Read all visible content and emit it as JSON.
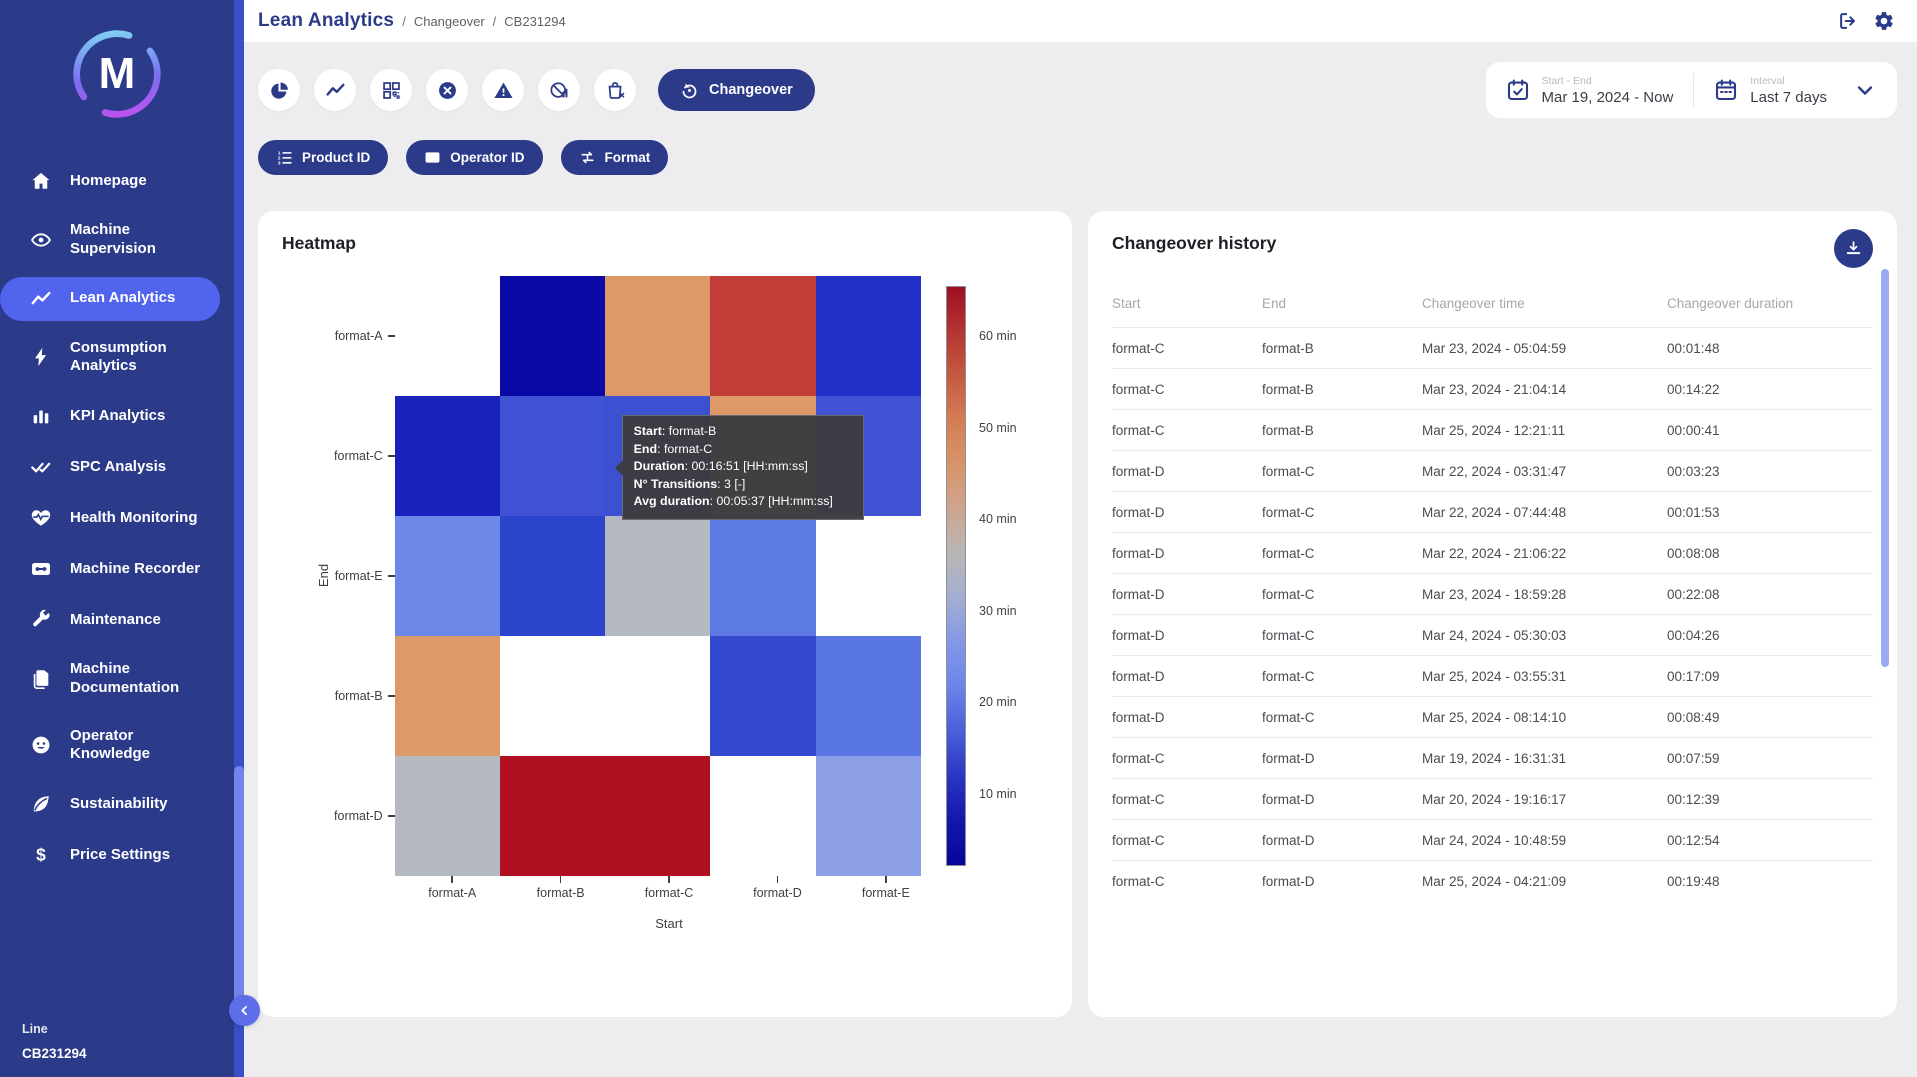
{
  "header": {
    "breadcrumb": {
      "title": "Lean Analytics",
      "separator": "/",
      "items": [
        "Changeover",
        "CB231294"
      ]
    },
    "actions": [
      {
        "icon": "logout-icon"
      },
      {
        "icon": "gear-icon"
      }
    ]
  },
  "sidebar": {
    "logo_letter": "M",
    "items": [
      {
        "label": "Homepage",
        "icon": "home-icon",
        "active": false
      },
      {
        "label": "Machine Supervision",
        "icon": "eye-icon",
        "active": false
      },
      {
        "label": "Lean Analytics",
        "icon": "trend-icon",
        "active": true
      },
      {
        "label": "Consumption Analytics",
        "icon": "bolt-icon",
        "active": false
      },
      {
        "label": "KPI Analytics",
        "icon": "bar-chart-icon",
        "active": false
      },
      {
        "label": "SPC Analysis",
        "icon": "double-check-icon",
        "active": false
      },
      {
        "label": "Health Monitoring",
        "icon": "heart-pulse-icon",
        "active": false
      },
      {
        "label": "Machine Recorder",
        "icon": "cassette-icon",
        "active": false
      },
      {
        "label": "Maintenance",
        "icon": "wrench-icon",
        "active": false
      },
      {
        "label": "Machine Documentation",
        "icon": "documents-icon",
        "active": false
      },
      {
        "label": "Operator Knowledge",
        "icon": "face-icon",
        "active": false
      },
      {
        "label": "Sustainability",
        "icon": "leaf-icon",
        "active": false
      },
      {
        "label": "Price Settings",
        "icon": "dollar-icon",
        "active": false
      }
    ],
    "footer": {
      "label": "Line",
      "value": "CB231294"
    }
  },
  "toolbar": {
    "view_buttons": [
      {
        "icon": "pie-chart-icon"
      },
      {
        "icon": "trend-icon"
      },
      {
        "icon": "qr-grid-icon"
      },
      {
        "icon": "cross-circle-icon"
      },
      {
        "icon": "warning-icon"
      },
      {
        "icon": "stats-disabled-icon"
      },
      {
        "icon": "bag-x-icon"
      }
    ],
    "active_view": {
      "label": "Changeover",
      "icon": "history-icon"
    },
    "date_range": {
      "label": "Start - End",
      "value": "Mar 19, 2024 - Now",
      "icon": "calendar-check-icon"
    },
    "interval": {
      "label": "Interval",
      "value": "Last 7 days",
      "icon": "calendar-icon"
    },
    "filters": [
      {
        "label": "Product ID",
        "icon": "numbered-list-icon"
      },
      {
        "label": "Operator ID",
        "icon": "id-card-icon"
      },
      {
        "label": "Format",
        "icon": "swap-icon"
      }
    ]
  },
  "heatmap": {
    "title": "Heatmap"
  },
  "chart_data": {
    "type": "heatmap",
    "title": "Heatmap",
    "xlabel": "Start",
    "ylabel": "End",
    "x_categories": [
      "format-A",
      "format-B",
      "format-C",
      "format-D",
      "format-E"
    ],
    "y_categories": [
      "format-A",
      "format-C",
      "format-E",
      "format-B",
      "format-D"
    ],
    "values_min": [
      [
        null,
        7,
        47,
        57,
        14
      ],
      [
        10,
        17,
        16,
        47,
        16
      ],
      [
        26,
        13,
        35,
        23,
        null
      ],
      [
        47,
        null,
        null,
        14,
        24
      ],
      [
        35,
        64,
        64,
        null,
        29
      ]
    ],
    "cell_colors": [
      [
        null,
        "#0a09a8",
        "#dd9a68",
        "#c23d38",
        "#2130c6"
      ],
      [
        "#1a22bc",
        "#4053d4",
        "#3c50d2",
        "#dd9a68",
        "#4053d4"
      ],
      [
        "#6c88e8",
        "#2c43cb",
        "#b5b9c1",
        "#5d79e4",
        null
      ],
      [
        "#dd9a68",
        null,
        null,
        "#3348cf",
        "#5a76e3"
      ],
      [
        "#b5b9c1",
        "#b01020",
        "#b01020",
        null,
        "#8c9fe6"
      ]
    ],
    "colorbar": {
      "labels": [
        "60 min",
        "50 min",
        "40 min",
        "30 min",
        "20 min",
        "10 min"
      ],
      "gradient": [
        "#9e0e22",
        "#b43531",
        "#c65a40",
        "#d47d55",
        "#d89468",
        "#cda58f",
        "#b9b7b5",
        "#a3aed2",
        "#8598e8",
        "#6a84ea",
        "#4a5fd9",
        "#2b36c4",
        "#1317ae",
        "#06059c"
      ]
    },
    "tooltip": {
      "lines": [
        {
          "label": "Start",
          "value": "format-B",
          "unit": ""
        },
        {
          "label": "End",
          "value": "format-C",
          "unit": ""
        },
        {
          "label": "Duration",
          "value": "00:16:51",
          "unit": "[HH:mm:ss]"
        },
        {
          "label": "N° Transitions",
          "value": "3",
          "unit": "[-]"
        },
        {
          "label": "Avg duration",
          "value": "00:05:37",
          "unit": "[HH:mm:ss]"
        }
      ]
    }
  },
  "history": {
    "title": "Changeover history",
    "columns": [
      "Start",
      "End",
      "Changeover time",
      "Changeover duration"
    ],
    "rows": [
      [
        "format-C",
        "format-B",
        "Mar 23, 2024 - 05:04:59",
        "00:01:48"
      ],
      [
        "format-C",
        "format-B",
        "Mar 23, 2024 - 21:04:14",
        "00:14:22"
      ],
      [
        "format-C",
        "format-B",
        "Mar 25, 2024 - 12:21:11",
        "00:00:41"
      ],
      [
        "format-D",
        "format-C",
        "Mar 22, 2024 - 03:31:47",
        "00:03:23"
      ],
      [
        "format-D",
        "format-C",
        "Mar 22, 2024 - 07:44:48",
        "00:01:53"
      ],
      [
        "format-D",
        "format-C",
        "Mar 22, 2024 - 21:06:22",
        "00:08:08"
      ],
      [
        "format-D",
        "format-C",
        "Mar 23, 2024 - 18:59:28",
        "00:22:08"
      ],
      [
        "format-D",
        "format-C",
        "Mar 24, 2024 - 05:30:03",
        "00:04:26"
      ],
      [
        "format-D",
        "format-C",
        "Mar 25, 2024 - 03:55:31",
        "00:17:09"
      ],
      [
        "format-D",
        "format-C",
        "Mar 25, 2024 - 08:14:10",
        "00:08:49"
      ],
      [
        "format-C",
        "format-D",
        "Mar 19, 2024 - 16:31:31",
        "00:07:59"
      ],
      [
        "format-C",
        "format-D",
        "Mar 20, 2024 - 19:16:17",
        "00:12:39"
      ],
      [
        "format-C",
        "format-D",
        "Mar 24, 2024 - 10:48:59",
        "00:12:54"
      ],
      [
        "format-C",
        "format-D",
        "Mar 25, 2024 - 04:21:09",
        "00:19:48"
      ]
    ]
  },
  "colors": {
    "sidebar_bg": "#2c3a8a",
    "active_item": "#5064ee",
    "accent_indigo": "#2c3a8a",
    "page_bg": "#ededef",
    "scroll_thumb": "#7384ea"
  }
}
